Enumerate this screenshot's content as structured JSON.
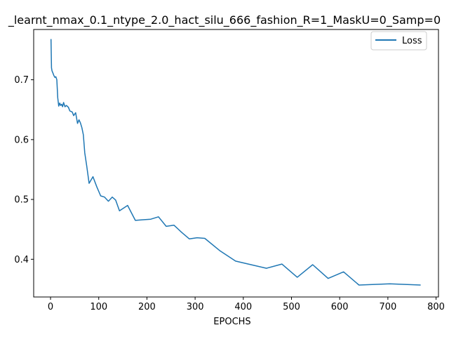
{
  "chart_data": {
    "type": "line",
    "title": "_learnt_nmax_0.1_ntype_2.0_hact_silu_666_fashion_R=1_MaskU=0_Samp=0",
    "xlabel": "EPOCHS",
    "ylabel": "",
    "xlim": [
      -35,
      805
    ],
    "ylim": [
      0.337,
      0.784
    ],
    "xticks": [
      0,
      100,
      200,
      300,
      400,
      500,
      600,
      700,
      800
    ],
    "yticks": [
      0.4,
      0.5,
      0.6,
      0.7
    ],
    "legend": "top-right",
    "grid": false,
    "series": [
      {
        "name": "Loss",
        "color": "#1f77b4",
        "x": [
          1,
          2,
          3,
          5,
          7,
          9,
          11,
          13,
          15,
          17,
          19,
          21,
          23,
          25,
          27,
          30,
          33,
          37,
          40,
          45,
          48,
          52,
          56,
          59,
          62,
          65,
          68,
          71,
          75,
          80,
          88,
          96,
          104,
          112,
          120,
          128,
          135,
          143,
          160,
          176,
          192,
          208,
          224,
          240,
          256,
          272,
          288,
          304,
          320,
          352,
          384,
          416,
          448,
          480,
          512,
          544,
          576,
          608,
          640,
          704,
          768
        ],
        "y": [
          0.768,
          0.72,
          0.715,
          0.711,
          0.707,
          0.704,
          0.705,
          0.7,
          0.67,
          0.656,
          0.661,
          0.657,
          0.659,
          0.655,
          0.662,
          0.655,
          0.657,
          0.654,
          0.648,
          0.646,
          0.64,
          0.645,
          0.627,
          0.633,
          0.628,
          0.62,
          0.608,
          0.578,
          0.556,
          0.527,
          0.538,
          0.521,
          0.506,
          0.504,
          0.497,
          0.504,
          0.499,
          0.481,
          0.49,
          0.465,
          0.466,
          0.467,
          0.471,
          0.455,
          0.457,
          0.445,
          0.434,
          0.436,
          0.435,
          0.414,
          0.397,
          0.391,
          0.385,
          0.392,
          0.37,
          0.391,
          0.368,
          0.379,
          0.357,
          0.359,
          0.357
        ]
      }
    ]
  }
}
